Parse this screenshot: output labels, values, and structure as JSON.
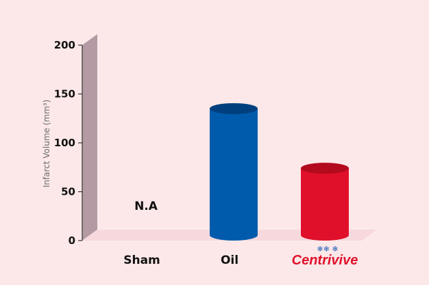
{
  "chart_data": {
    "type": "bar",
    "ylabel": "Infarct Volume (mm³)",
    "ylim": [
      0,
      200
    ],
    "yticks": [
      0,
      50,
      100,
      150,
      200
    ],
    "categories": [
      "Sham",
      "Oil",
      "Centrivive"
    ],
    "values": [
      null,
      135,
      74
    ],
    "data_labels": [
      "N.A",
      "",
      ""
    ],
    "colors": {
      "axis_wall": "#b39aa3",
      "floor": "#f7d9dd",
      "oil_bar": "#005bac",
      "oil_top": "#003f7d",
      "centrivive_bar": "#e0102b",
      "centrivive_top": "#b30a1e",
      "brand_text": "#e0102b"
    },
    "brand_icon": "snowflake-icon"
  }
}
